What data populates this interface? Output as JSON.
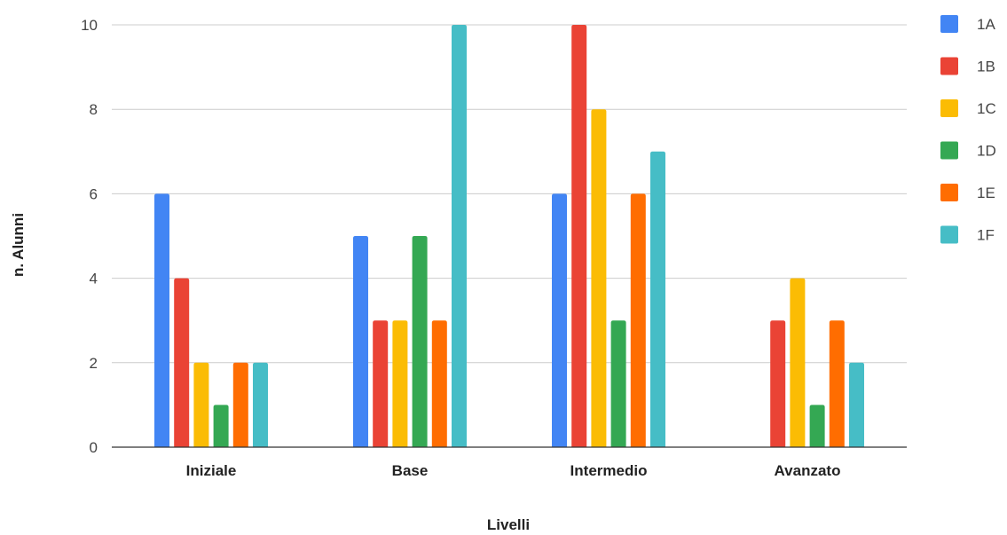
{
  "chart_data": {
    "type": "bar",
    "title": "",
    "xlabel": "Livelli",
    "ylabel": "n. Alunni",
    "ylim": [
      0,
      10
    ],
    "yticks": [
      0,
      2,
      4,
      6,
      8,
      10
    ],
    "grid": true,
    "legend_position": "right",
    "categories": [
      "Iniziale",
      "Base",
      "Intermedio",
      "Avanzato"
    ],
    "series": [
      {
        "name": "1A",
        "color": "#4285f4",
        "values": [
          6,
          5,
          6,
          0
        ]
      },
      {
        "name": "1B",
        "color": "#ea4335",
        "values": [
          4,
          3,
          10,
          3
        ]
      },
      {
        "name": "1C",
        "color": "#fbbc04",
        "values": [
          2,
          3,
          8,
          4
        ]
      },
      {
        "name": "1D",
        "color": "#34a853",
        "values": [
          1,
          5,
          3,
          1
        ]
      },
      {
        "name": "1E",
        "color": "#ff6d01",
        "values": [
          2,
          3,
          6,
          3
        ]
      },
      {
        "name": "1F",
        "color": "#46bdc6",
        "values": [
          2,
          10,
          7,
          2
        ]
      }
    ]
  }
}
